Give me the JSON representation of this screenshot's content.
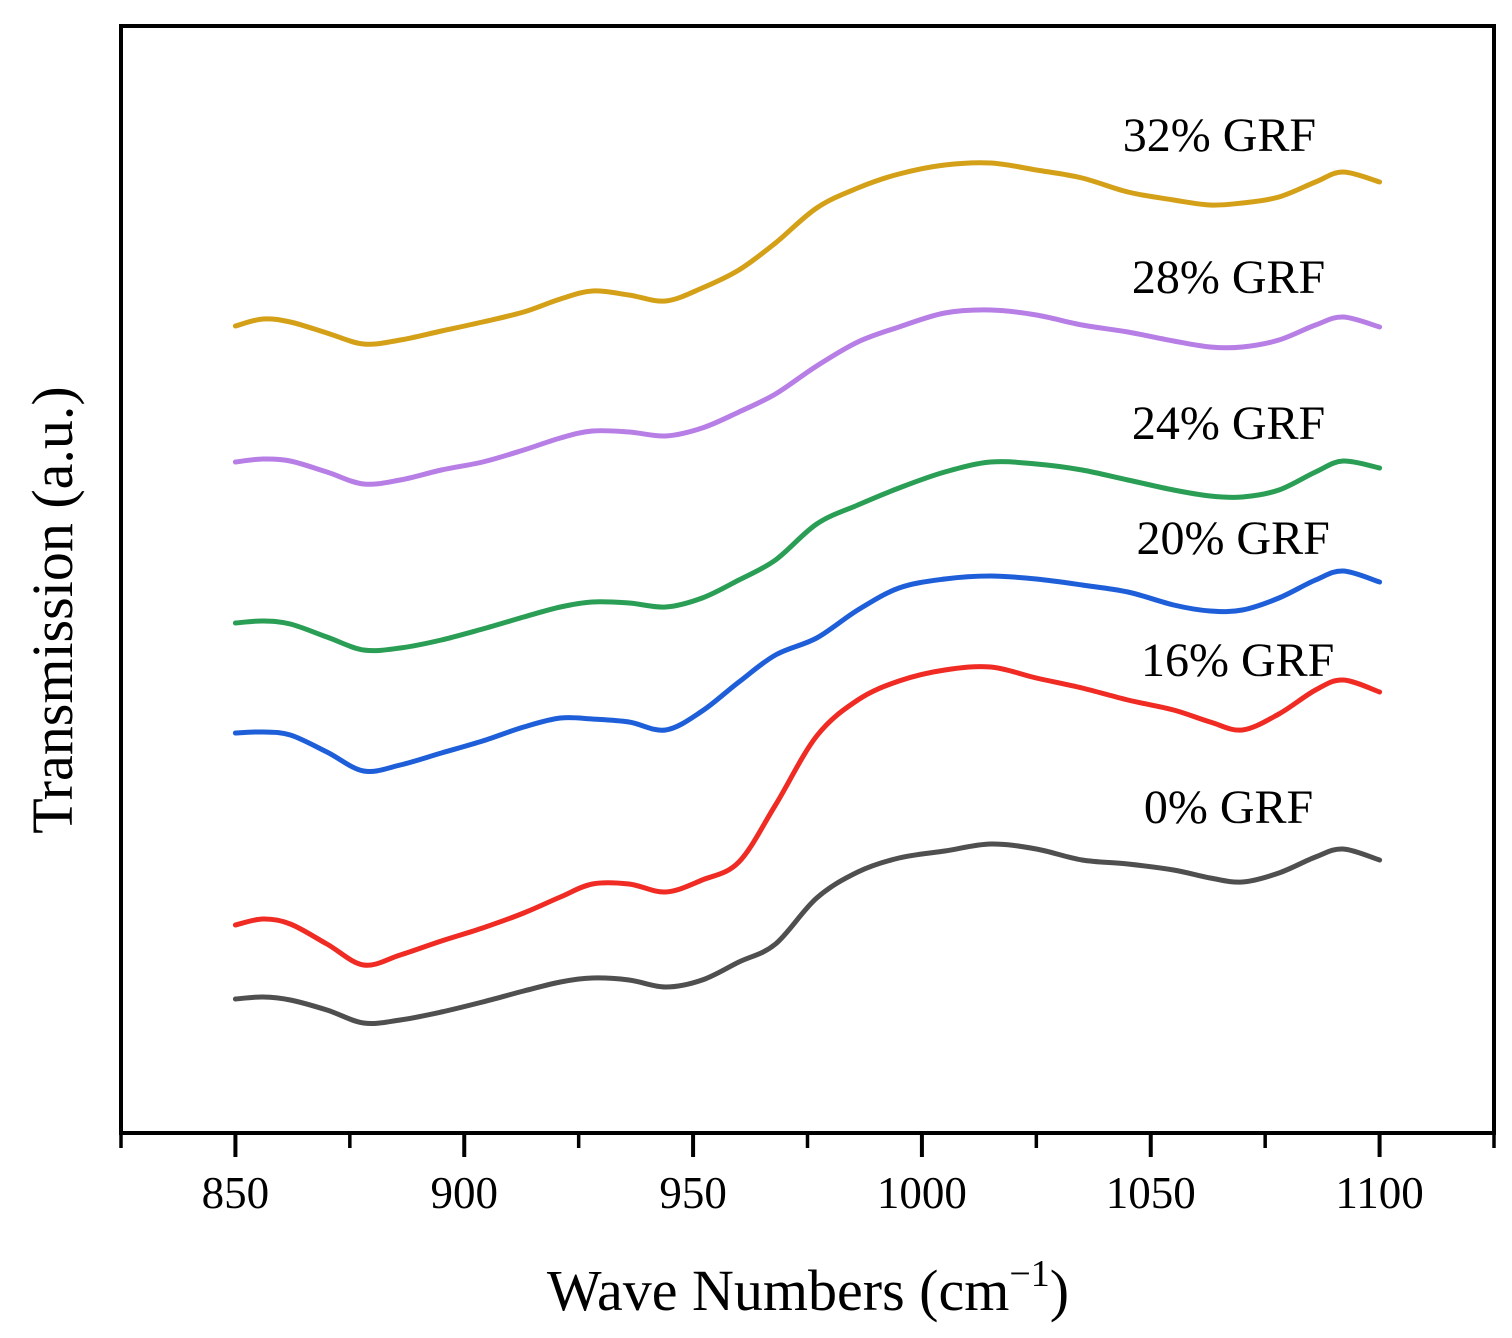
{
  "chart_data": {
    "type": "line",
    "title": "",
    "xlabel": {
      "text": "Wave Numbers (cm",
      "sup": "−1",
      "close": ")"
    },
    "ylabel": "Transmission (a.u.)",
    "xlim": [
      825,
      1125
    ],
    "ylim": [
      0,
      1107
    ],
    "y_units": "a.u.",
    "grid": false,
    "legend": "inline-labels-above-curves",
    "x_ticks_major": [
      {
        "value": 850,
        "label": "850"
      },
      {
        "value": 900,
        "label": "900"
      },
      {
        "value": 950,
        "label": "950"
      },
      {
        "value": 1000,
        "label": "1000"
      },
      {
        "value": 1050,
        "label": "1050"
      },
      {
        "value": 1100,
        "label": "1100"
      }
    ],
    "x_ticks_minor": [
      825,
      875,
      925,
      975,
      1025,
      1075,
      1125
    ],
    "axis_color": "#000000",
    "background_color": "#ffffff",
    "x": [
      850,
      856,
      862,
      870,
      878,
      886,
      895,
      904,
      913,
      921,
      928,
      936,
      944,
      952,
      960,
      968,
      977,
      986,
      995,
      1005,
      1015,
      1025,
      1035,
      1045,
      1055,
      1063,
      1070,
      1078,
      1086,
      1092,
      1100
    ],
    "series": [
      {
        "id": "32-grf",
        "label": "32% GRF",
        "color": "#D4A017",
        "label_pos": {
          "x": 1065,
          "y": 993
        },
        "values": [
          807,
          814,
          811,
          800,
          789,
          793,
          802,
          811,
          821,
          834,
          842,
          838,
          832,
          845,
          863,
          890,
          925,
          945,
          959,
          968,
          970,
          963,
          955,
          941,
          933,
          928,
          930,
          936,
          951,
          961,
          951
        ]
      },
      {
        "id": "28-grf",
        "label": "28% GRF",
        "color": "#B77EE5",
        "label_pos": {
          "x": 1067,
          "y": 851
        },
        "values": [
          671,
          674,
          672,
          661,
          649,
          653,
          663,
          671,
          683,
          695,
          702,
          701,
          697,
          705,
          721,
          739,
          767,
          791,
          806,
          820,
          823,
          818,
          808,
          801,
          792,
          786,
          786,
          793,
          808,
          816,
          806
        ]
      },
      {
        "id": "24-grf",
        "label": "24% GRF",
        "color": "#2A9E55",
        "label_pos": {
          "x": 1067,
          "y": 705
        },
        "values": [
          510,
          512,
          509,
          496,
          483,
          485,
          493,
          504,
          516,
          526,
          531,
          530,
          526,
          535,
          553,
          573,
          609,
          628,
          645,
          661,
          671,
          669,
          663,
          653,
          643,
          637,
          636,
          643,
          661,
          672,
          665
        ]
      },
      {
        "id": "20-grf",
        "label": "20% GRF",
        "color": "#1E5FD9",
        "label_pos": {
          "x": 1068,
          "y": 590
        },
        "values": [
          400,
          401,
          398,
          381,
          362,
          368,
          380,
          392,
          406,
          415,
          414,
          411,
          403,
          422,
          451,
          478,
          495,
          523,
          545,
          554,
          557,
          554,
          548,
          541,
          528,
          522,
          523,
          535,
          553,
          562,
          551
        ]
      },
      {
        "id": "16-grf",
        "label": "16% GRF",
        "color": "#EF2B24",
        "label_pos": {
          "x": 1069,
          "y": 468
        },
        "values": [
          208,
          214,
          209,
          189,
          168,
          178,
          192,
          205,
          220,
          236,
          249,
          249,
          241,
          253,
          271,
          328,
          397,
          433,
          452,
          463,
          466,
          455,
          445,
          433,
          423,
          411,
          403,
          419,
          443,
          453,
          441
        ]
      },
      {
        "id": "0-grf",
        "label": "0% GRF",
        "color": "#4F4F4F",
        "label_pos": {
          "x": 1067,
          "y": 321
        },
        "values": [
          134,
          136,
          133,
          123,
          110,
          113,
          121,
          131,
          142,
          151,
          155,
          153,
          146,
          153,
          171,
          189,
          235,
          261,
          275,
          282,
          289,
          284,
          273,
          269,
          263,
          255,
          251,
          260,
          276,
          284,
          273
        ]
      }
    ]
  }
}
